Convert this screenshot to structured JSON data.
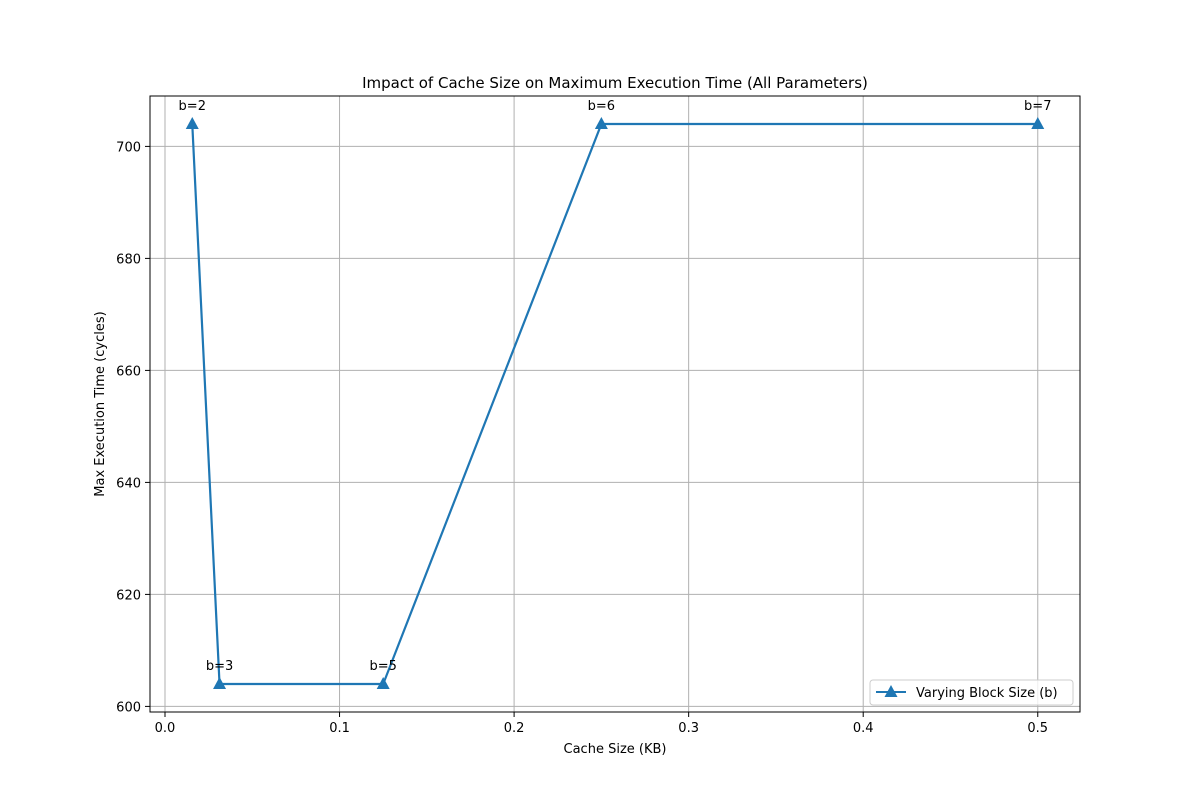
{
  "chart_data": {
    "type": "line",
    "title": "Impact of Cache Size on Maximum Execution Time (All Parameters)",
    "xlabel": "Cache Size (KB)",
    "ylabel": "Max Execution Time (cycles)",
    "xlim": [
      -0.00859,
      0.5242
    ],
    "ylim": [
      599,
      709
    ],
    "x_ticks": [
      0.0,
      0.1,
      0.2,
      0.3,
      0.4,
      0.5
    ],
    "x_tick_labels": [
      "0.0",
      "0.1",
      "0.2",
      "0.3",
      "0.4",
      "0.5"
    ],
    "y_ticks": [
      600,
      620,
      640,
      660,
      680,
      700
    ],
    "y_tick_labels": [
      "600",
      "620",
      "640",
      "660",
      "680",
      "700"
    ],
    "grid": true,
    "legend_position": "bottom-right",
    "series": [
      {
        "name": "Varying Block Size (b)",
        "color": "#1f77b4",
        "marker": "triangle-up",
        "x": [
          0.015625,
          0.03125,
          0.125,
          0.25,
          0.5
        ],
        "values": [
          704,
          604,
          604,
          704,
          704
        ],
        "annotations": [
          "b=2",
          "b=3",
          "b=5",
          "b=6",
          "b=7"
        ]
      }
    ]
  }
}
